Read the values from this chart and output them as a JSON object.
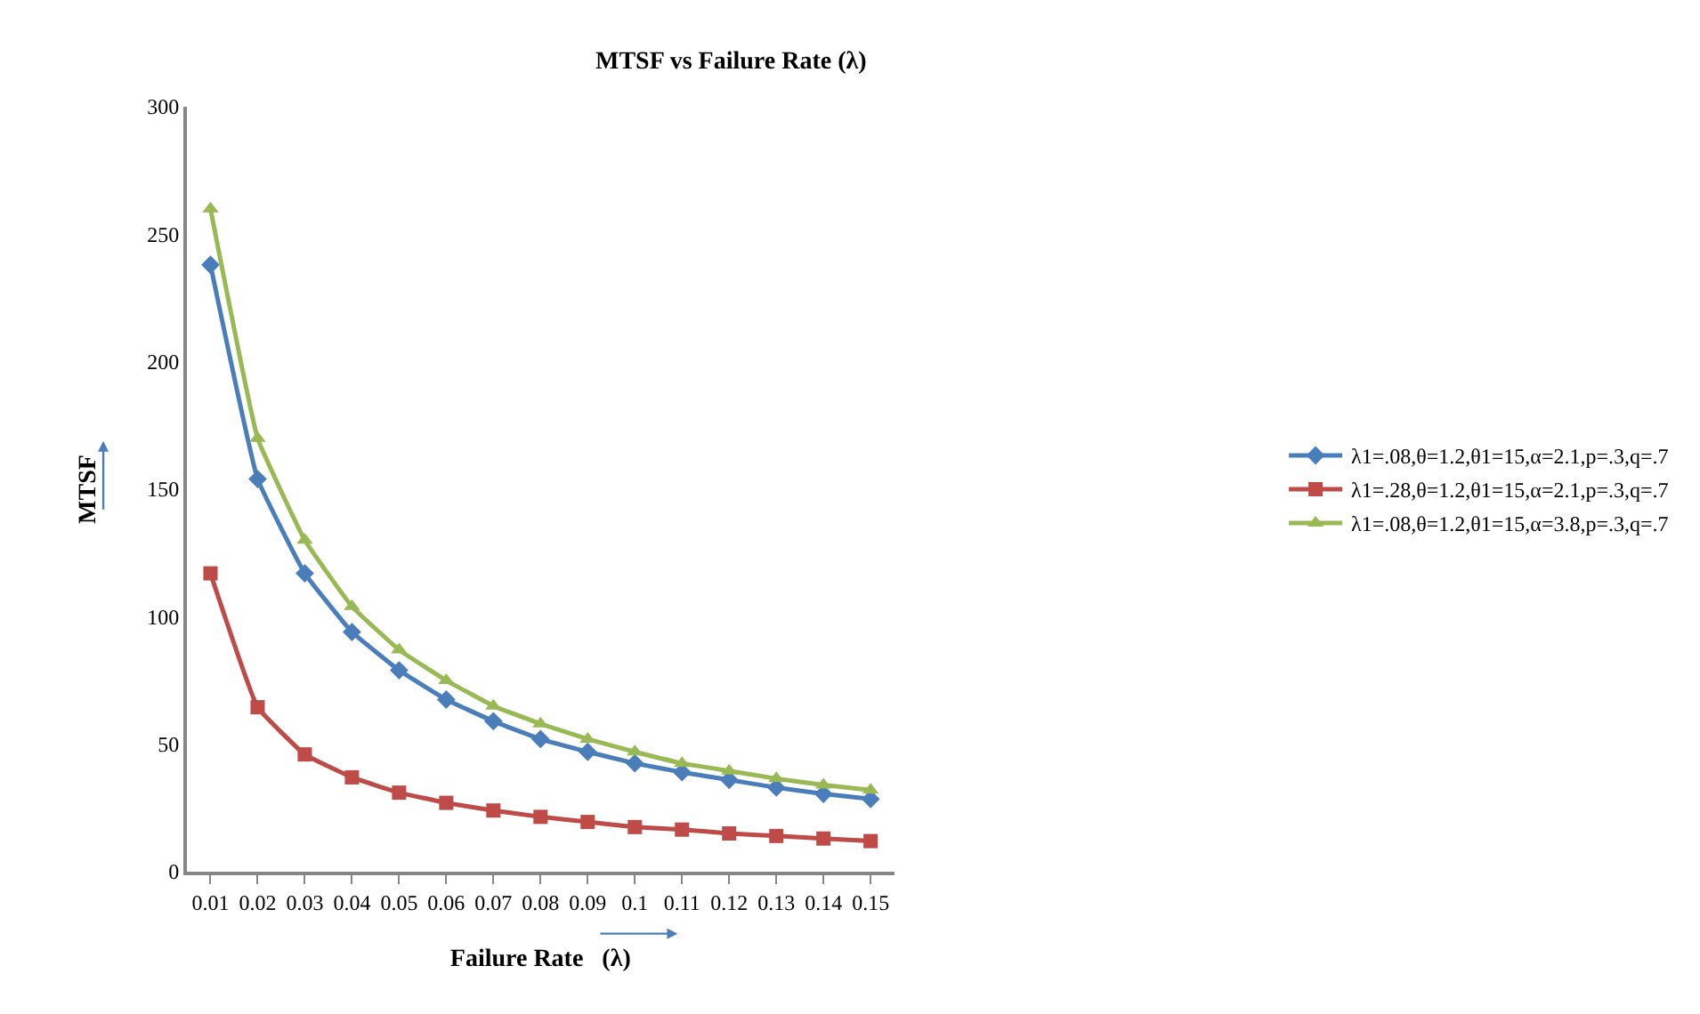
{
  "chart_data": {
    "type": "line",
    "title": "MTSF vs Failure Rate (λ)",
    "xlabel": "Failure Rate   (λ)",
    "ylabel": "MTSF",
    "categories": [
      "0.01",
      "0.02",
      "0.03",
      "0.04",
      "0.05",
      "0.06",
      "0.07",
      "0.08",
      "0.09",
      "0.1",
      "0.11",
      "0.12",
      "0.13",
      "0.14",
      "0.15"
    ],
    "series": [
      {
        "name": "λ1=.08,θ=1.2,θ1=15,α=2.1,p=.3,q=.7",
        "color": "#4a7ebb",
        "marker": "diamond",
        "values": [
          238,
          154,
          117,
          94,
          79,
          67.5,
          59,
          52,
          47,
          42.5,
          39,
          36,
          33,
          30.5,
          28.5
        ]
      },
      {
        "name": "λ1=.28,θ=1.2,θ1=15,α=2.1,p=.3,q=.7",
        "color": "#be4b48",
        "marker": "square",
        "values": [
          117,
          64.5,
          46,
          37,
          31,
          27,
          24,
          21.5,
          19.5,
          17.5,
          16.5,
          15,
          14,
          13,
          12
        ]
      },
      {
        "name": "λ1=.08,θ=1.2,θ1=15,α=3.8,p=.3,q=.7",
        "color": "#98b954",
        "marker": "triangle",
        "values": [
          260,
          170,
          130,
          104,
          87,
          75,
          65,
          58,
          52,
          47,
          42.5,
          39.5,
          36.5,
          34,
          32
        ]
      }
    ],
    "ylim": [
      0,
      300
    ],
    "yticks": [
      0,
      50,
      100,
      150,
      200,
      250,
      300
    ],
    "legend": "right",
    "line_style": "solid"
  }
}
